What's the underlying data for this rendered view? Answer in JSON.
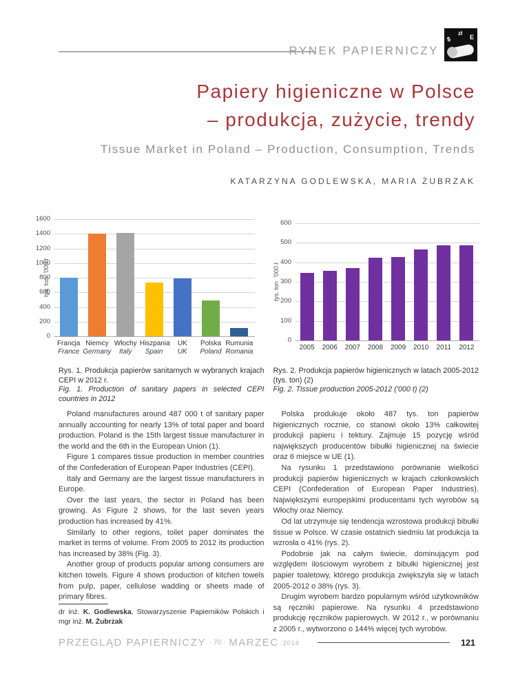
{
  "header": {
    "section_label": "RYNEK PAPIERNICZY",
    "logo_letters": {
      "dollar": "$",
      "zloty": "zł",
      "euro": "E"
    }
  },
  "title": {
    "line1": "Papiery higieniczne w Polsce",
    "line2": "– produkcja, zużycie, trendy",
    "subtitle": "Tissue Market in Poland – Production, Consumption, Trends",
    "authors": "KATARZYNA GODLEWSKA, MARIA ŻUBRZAK"
  },
  "chart_data": [
    {
      "id": "fig1",
      "type": "bar",
      "ylabel": "tys. ton",
      "ylabel_units": "'000 t",
      "ylim": [
        0,
        1600
      ],
      "ytick_step": 200,
      "grid": true,
      "categories": [
        {
          "pl": "Francja",
          "en": "France"
        },
        {
          "pl": "Niemcy",
          "en": "Germany"
        },
        {
          "pl": "Włochy",
          "en": "Italy"
        },
        {
          "pl": "Hiszpania",
          "en": "Spain"
        },
        {
          "pl": "UK",
          "en": "UK"
        },
        {
          "pl": "Polska",
          "en": "Poland"
        },
        {
          "pl": "Rumunia",
          "en": "Romania"
        }
      ],
      "values": [
        800,
        1400,
        1410,
        730,
        790,
        490,
        110
      ],
      "colors": [
        "#5B9BD5",
        "#ED7D31",
        "#A5A5A5",
        "#FFC000",
        "#4472C4",
        "#70AD47",
        "#2D6096"
      ]
    },
    {
      "id": "fig2",
      "type": "bar",
      "ylabel": "tys. ton",
      "ylabel_units": "'000 t",
      "ylim": [
        0,
        600
      ],
      "ytick_step": 100,
      "grid": true,
      "categories": [
        "2005",
        "2006",
        "2007",
        "2008",
        "2009",
        "2010",
        "2011",
        "2012"
      ],
      "values": [
        345,
        357,
        370,
        422,
        428,
        465,
        487,
        487
      ],
      "colors": "#7030A0"
    }
  ],
  "captions": {
    "fig1_pl": "Rys. 1. Produkcja papierów sanitarnych w wybranych krajach CEPI w 2012 r.",
    "fig1_en": "Fig. 1. Production of sanitary papers in selected CEPI countries in 2012",
    "fig2_pl": "Rys. 2. Produkcja papierów higienicznych w latach 2005-2012 (tys. ton) (2)",
    "fig2_en": "Fig. 2. Tissue production 2005-2012 ('000 t) (2)"
  },
  "body": {
    "left_paragraphs": [
      "Poland manufactures around 487 000 t of sanitary paper annually accounting for nearly 13% of total paper and board production. Poland is the 15th largest tissue manufacturer in the world and the 6th in the European Union (1).",
      "Figure 1 compares tissue production in member countries of the Confederation of European Paper Industries (CEPI).",
      "Italy and Germany are the largest tissue manufacturers in Europe.",
      "Over the last years, the sector in Poland has been growing. As Figure 2 shows, for the last seven years production has increased by 41%.",
      "Similarly to other regions, toilet paper dominates the market in terms of volume. From 2005 to 2012 its production has increased by 38% (Fig. 3).",
      "Another group of products popular among consumers are kitchen towels. Figure 4 shows production of kitchen towels from pulp, paper, cellulose wadding or sheets made of primary fibres."
    ],
    "right_paragraphs": [
      "Polska produkuje około 487 tys. ton papierów higienicznych rocznie, co stanowi około 13% całkowitej produkcji papieru i tektury. Zajmuje 15 pozycję wśród największych producentów bibułki higienicznej na świecie oraz 6 miejsce w UE (1).",
      "Na rysunku 1 przedstawiono porównanie wielkości produkcji papierów higienicznych w krajach członkowskich CEPI (Confederation of European Paper Industries). Największymi europejskimi producentami tych wyrobów są Włochy oraz Niemcy.",
      "Od lat utrzymuje się tendencja wzrostowa produkcji bibułki tissue w Polsce. W czasie ostatnich siedmiu lat produkcja ta wzrosła o 41% (rys. 2).",
      "Podobnie jak na całym świecie, dominującym pod względem ilościowym wyrobem z bibułki higienicznej jest papier toaletowy, którego produkcja zwiększyła się w latach 2005-2012 o 38% (rys. 3).",
      "Drugim wyrobem bardzo popularnym wśród użytkowników są ręczniki papierowe. Na rysunku 4 przedstawiono produkcję ręczników papierowych. W 2012 r., w porównaniu z 2005 r., wytworzono o 144% więcej tych wyrobów."
    ]
  },
  "footnote": {
    "parts": [
      {
        "text": "dr inż. ",
        "bold": false
      },
      {
        "text": "K. Godlewska",
        "bold": true
      },
      {
        "text": ", Stowarzyszenie Papierników Polskich i mgr inż. ",
        "bold": false
      },
      {
        "text": "M. Żubrzak",
        "bold": true
      }
    ]
  },
  "footer": {
    "journal": "PRZEGLĄD PAPIERNICZY",
    "issue": "· 70 ·",
    "month": "MARZEC",
    "year": "2014",
    "page_number": "121"
  }
}
